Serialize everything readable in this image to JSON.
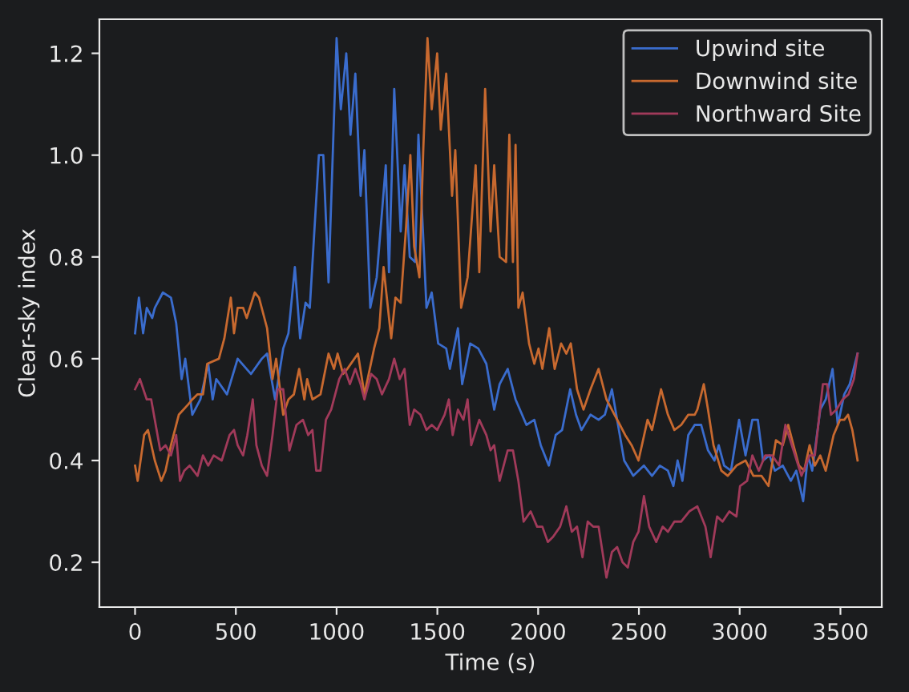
{
  "chart_data": {
    "type": "line",
    "xlabel": "Time (s)",
    "ylabel": "Clear-sky index",
    "xlim": [
      -177,
      3705
    ],
    "ylim": [
      0.112,
      1.267
    ],
    "xticks": [
      0,
      500,
      1000,
      1500,
      2000,
      2500,
      3000,
      3500
    ],
    "yticks": [
      {
        "value": 0.2,
        "label": "0.2"
      },
      {
        "value": 0.4,
        "label": "0.4"
      },
      {
        "value": 0.6,
        "label": "0.6"
      },
      {
        "value": 0.8,
        "label": "0.8"
      },
      {
        "value": 1.0,
        "label": "1.0"
      },
      {
        "value": 1.2,
        "label": "1.2"
      }
    ],
    "grid": false,
    "legend": "top right",
    "marker": "none",
    "line_style": "solid",
    "series": [
      {
        "name": "Upwind site",
        "color": "#3a6ccd",
        "x": [
          0,
          19,
          40,
          58,
          85,
          98,
          138,
          178,
          204,
          231,
          249,
          284,
          324,
          363,
          385,
          403,
          456,
          509,
          575,
          629,
          655,
          695,
          735,
          761,
          793,
          819,
          846,
          867,
          912,
          934,
          960,
          1000,
          1021,
          1048,
          1069,
          1093,
          1119,
          1138,
          1167,
          1199,
          1244,
          1260,
          1286,
          1318,
          1337,
          1363,
          1390,
          1406,
          1446,
          1472,
          1504,
          1544,
          1562,
          1602,
          1623,
          1663,
          1703,
          1743,
          1782,
          1809,
          1849,
          1888,
          1942,
          1981,
          2013,
          2053,
          2087,
          2119,
          2159,
          2188,
          2215,
          2260,
          2300,
          2331,
          2366,
          2392,
          2427,
          2472,
          2525,
          2565,
          2604,
          2644,
          2671,
          2692,
          2716,
          2745,
          2777,
          2809,
          2843,
          2875,
          2896,
          2923,
          2957,
          2997,
          3029,
          3063,
          3090,
          3116,
          3148,
          3175,
          3214,
          3254,
          3281,
          3315,
          3339,
          3360,
          3400,
          3427,
          3461,
          3487,
          3519,
          3546,
          3585
        ],
        "values": [
          0.65,
          0.72,
          0.65,
          0.7,
          0.68,
          0.7,
          0.73,
          0.72,
          0.67,
          0.56,
          0.6,
          0.49,
          0.52,
          0.59,
          0.52,
          0.56,
          0.53,
          0.6,
          0.57,
          0.6,
          0.61,
          0.52,
          0.62,
          0.65,
          0.78,
          0.64,
          0.71,
          0.7,
          1.0,
          1.0,
          0.75,
          1.23,
          1.09,
          1.2,
          1.04,
          1.16,
          0.92,
          1.01,
          0.7,
          0.76,
          0.98,
          0.77,
          1.13,
          0.85,
          0.98,
          0.8,
          0.79,
          1.04,
          0.7,
          0.73,
          0.63,
          0.62,
          0.58,
          0.66,
          0.55,
          0.63,
          0.62,
          0.59,
          0.5,
          0.55,
          0.58,
          0.52,
          0.47,
          0.48,
          0.43,
          0.39,
          0.45,
          0.46,
          0.54,
          0.49,
          0.46,
          0.49,
          0.48,
          0.49,
          0.54,
          0.48,
          0.4,
          0.37,
          0.39,
          0.37,
          0.39,
          0.38,
          0.35,
          0.4,
          0.36,
          0.45,
          0.47,
          0.47,
          0.42,
          0.4,
          0.43,
          0.39,
          0.38,
          0.48,
          0.41,
          0.48,
          0.48,
          0.4,
          0.41,
          0.38,
          0.39,
          0.36,
          0.38,
          0.32,
          0.41,
          0.38,
          0.5,
          0.52,
          0.58,
          0.47,
          0.53,
          0.55,
          0.61
        ]
      },
      {
        "name": "Downwind site",
        "color": "#c8692f",
        "x": [
          0,
          13,
          45,
          64,
          98,
          130,
          151,
          178,
          217,
          263,
          284,
          310,
          337,
          358,
          416,
          443,
          475,
          491,
          509,
          536,
          554,
          594,
          615,
          655,
          682,
          700,
          735,
          761,
          788,
          814,
          840,
          854,
          880,
          920,
          960,
          987,
          1005,
          1032,
          1053,
          1106,
          1138,
          1186,
          1212,
          1233,
          1271,
          1292,
          1318,
          1345,
          1366,
          1385,
          1411,
          1430,
          1451,
          1472,
          1499,
          1517,
          1544,
          1573,
          1589,
          1618,
          1650,
          1690,
          1708,
          1737,
          1764,
          1782,
          1809,
          1841,
          1857,
          1875,
          1888,
          1902,
          1923,
          1955,
          1981,
          2002,
          2021,
          2055,
          2082,
          2114,
          2140,
          2162,
          2193,
          2225,
          2260,
          2300,
          2339,
          2379,
          2406,
          2432,
          2464,
          2498,
          2543,
          2565,
          2610,
          2644,
          2676,
          2710,
          2745,
          2777,
          2790,
          2822,
          2843,
          2870,
          2909,
          2941,
          2984,
          3029,
          3068,
          3108,
          3143,
          3180,
          3214,
          3241,
          3267,
          3294,
          3320,
          3347,
          3373,
          3400,
          3427,
          3466,
          3498,
          3519,
          3538,
          3559,
          3585
        ],
        "values": [
          0.39,
          0.36,
          0.45,
          0.46,
          0.4,
          0.36,
          0.38,
          0.43,
          0.49,
          0.51,
          0.52,
          0.53,
          0.53,
          0.59,
          0.6,
          0.64,
          0.72,
          0.65,
          0.7,
          0.7,
          0.68,
          0.73,
          0.72,
          0.66,
          0.56,
          0.6,
          0.49,
          0.52,
          0.53,
          0.58,
          0.52,
          0.56,
          0.52,
          0.53,
          0.61,
          0.58,
          0.61,
          0.57,
          0.58,
          0.61,
          0.53,
          0.62,
          0.66,
          0.78,
          0.64,
          0.72,
          0.71,
          0.86,
          1.0,
          0.82,
          0.76,
          1.01,
          1.23,
          1.09,
          1.2,
          1.05,
          1.16,
          0.92,
          1.01,
          0.7,
          0.76,
          0.98,
          0.77,
          1.13,
          0.85,
          0.98,
          0.8,
          0.79,
          1.04,
          0.79,
          1.02,
          0.7,
          0.73,
          0.63,
          0.59,
          0.62,
          0.58,
          0.66,
          0.58,
          0.63,
          0.61,
          0.63,
          0.54,
          0.5,
          0.54,
          0.58,
          0.52,
          0.49,
          0.47,
          0.45,
          0.43,
          0.4,
          0.48,
          0.46,
          0.54,
          0.49,
          0.46,
          0.47,
          0.49,
          0.49,
          0.5,
          0.55,
          0.5,
          0.43,
          0.38,
          0.37,
          0.39,
          0.4,
          0.37,
          0.37,
          0.35,
          0.44,
          0.43,
          0.47,
          0.43,
          0.39,
          0.38,
          0.43,
          0.39,
          0.41,
          0.38,
          0.45,
          0.48,
          0.48,
          0.49,
          0.46,
          0.4
        ]
      },
      {
        "name": "Northward Site",
        "color": "#a13a5a",
        "x": [
          0,
          24,
          58,
          80,
          98,
          125,
          151,
          178,
          204,
          223,
          244,
          271,
          310,
          337,
          363,
          390,
          430,
          469,
          491,
          509,
          536,
          557,
          584,
          602,
          629,
          655,
          682,
          708,
          735,
          766,
          801,
          833,
          859,
          880,
          899,
          920,
          947,
          973,
          1013,
          1040,
          1066,
          1093,
          1119,
          1138,
          1172,
          1199,
          1225,
          1260,
          1286,
          1313,
          1337,
          1363,
          1385,
          1416,
          1446,
          1472,
          1499,
          1536,
          1557,
          1576,
          1602,
          1629,
          1650,
          1668,
          1708,
          1743,
          1764,
          1782,
          1809,
          1849,
          1875,
          1902,
          1928,
          1963,
          1995,
          2021,
          2048,
          2074,
          2109,
          2140,
          2167,
          2193,
          2220,
          2246,
          2273,
          2300,
          2339,
          2366,
          2392,
          2419,
          2445,
          2472,
          2498,
          2525,
          2551,
          2586,
          2618,
          2644,
          2676,
          2710,
          2750,
          2790,
          2830,
          2856,
          2888,
          2915,
          2949,
          2984,
          3002,
          3037,
          3063,
          3095,
          3127,
          3161,
          3196,
          3227,
          3267,
          3307,
          3347,
          3373,
          3413,
          3434,
          3453,
          3480,
          3511,
          3540,
          3567,
          3585
        ],
        "values": [
          0.54,
          0.56,
          0.52,
          0.52,
          0.48,
          0.42,
          0.43,
          0.41,
          0.45,
          0.36,
          0.38,
          0.39,
          0.37,
          0.41,
          0.39,
          0.41,
          0.4,
          0.45,
          0.46,
          0.43,
          0.41,
          0.45,
          0.52,
          0.43,
          0.39,
          0.37,
          0.45,
          0.54,
          0.54,
          0.42,
          0.47,
          0.48,
          0.45,
          0.46,
          0.38,
          0.38,
          0.48,
          0.5,
          0.56,
          0.58,
          0.55,
          0.58,
          0.55,
          0.52,
          0.57,
          0.56,
          0.53,
          0.56,
          0.6,
          0.56,
          0.58,
          0.47,
          0.5,
          0.49,
          0.46,
          0.47,
          0.46,
          0.49,
          0.52,
          0.45,
          0.5,
          0.48,
          0.52,
          0.43,
          0.48,
          0.45,
          0.42,
          0.43,
          0.36,
          0.42,
          0.42,
          0.36,
          0.28,
          0.3,
          0.27,
          0.27,
          0.24,
          0.25,
          0.27,
          0.31,
          0.26,
          0.27,
          0.21,
          0.28,
          0.27,
          0.27,
          0.17,
          0.22,
          0.23,
          0.2,
          0.19,
          0.24,
          0.26,
          0.33,
          0.27,
          0.24,
          0.27,
          0.26,
          0.28,
          0.28,
          0.3,
          0.31,
          0.27,
          0.21,
          0.29,
          0.28,
          0.3,
          0.29,
          0.35,
          0.36,
          0.41,
          0.38,
          0.41,
          0.41,
          0.39,
          0.47,
          0.42,
          0.37,
          0.41,
          0.41,
          0.55,
          0.55,
          0.49,
          0.5,
          0.52,
          0.53,
          0.56,
          0.61
        ]
      }
    ]
  }
}
